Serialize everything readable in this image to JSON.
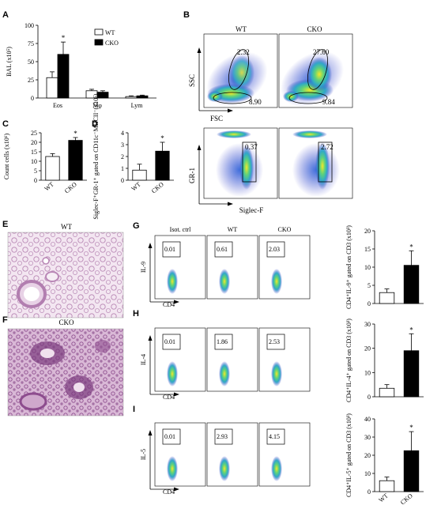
{
  "panel_letters": [
    "A",
    "B",
    "C",
    "D",
    "E",
    "F",
    "G",
    "H",
    "I"
  ],
  "colors": {
    "wt_fill": "#ffffff",
    "cko_fill": "#000000",
    "tissue": "#c9a4c6",
    "tissue_dark": "#7b3f7e",
    "flow_hot": "#e8e020",
    "flow_mid": "#2fa8a0",
    "flow_cold": "#3a3fc8"
  },
  "legend": {
    "wt": "WT",
    "cko": "CKO"
  },
  "panel_b": {
    "col_wt": "WT",
    "col_cko": "CKO",
    "top_ylabel": "SSC",
    "top_xlabel": "FSC",
    "top_values": {
      "wt_upper": "2.32",
      "wt_lower": "8.90",
      "cko_upper": "27.60",
      "cko_lower": "9.84"
    },
    "bot_ylabel": "GR-1",
    "bot_xlabel": "Siglec-F",
    "bot_values": {
      "wt": "0.37",
      "cko": "2.72"
    }
  },
  "panel_e": {
    "title": "WT"
  },
  "panel_f": {
    "title": "CKO"
  },
  "flow_rows": {
    "col_labels": [
      "Isot. ctrl",
      "WT",
      "CKO"
    ],
    "xlabel": "CD4",
    "G": {
      "ylabel": "IL-9",
      "values": [
        "0.01",
        "0.61",
        "2.03"
      ]
    },
    "H": {
      "ylabel": "IL-4",
      "values": [
        "0.01",
        "1.86",
        "2.53"
      ]
    },
    "I": {
      "ylabel": "IL-5",
      "values": [
        "0.01",
        "2.93",
        "4.15"
      ]
    }
  },
  "chart_data": [
    {
      "panel": "A",
      "type": "bar",
      "categories": [
        "Eos",
        "Mφ",
        "Lym"
      ],
      "series": [
        {
          "name": "WT",
          "values": [
            28,
            10,
            2
          ],
          "errors": [
            8,
            2,
            1
          ]
        },
        {
          "name": "CKO",
          "values": [
            60,
            8,
            3
          ],
          "errors": [
            17,
            2,
            1
          ]
        }
      ],
      "ylabel": "BAL (x10⁵)",
      "ylim": [
        0,
        100
      ],
      "yticks": [
        0,
        25,
        50,
        75,
        100
      ],
      "significance": [
        "*",
        "",
        ""
      ]
    },
    {
      "panel": "C",
      "type": "bar",
      "categories": [
        "WT",
        "CKO"
      ],
      "values": [
        12.5,
        21
      ],
      "errors": [
        1.5,
        1.5
      ],
      "ylabel": "Count cells (x10⁶)",
      "ylim": [
        0,
        25
      ],
      "yticks": [
        0,
        5,
        10,
        15,
        20,
        25
      ],
      "significance": [
        "",
        "*"
      ]
    },
    {
      "panel": "D",
      "type": "bar",
      "categories": [
        "WT",
        "CKO"
      ],
      "values": [
        0.85,
        2.45
      ],
      "errors": [
        0.5,
        0.75
      ],
      "ylabel": "Siglec-F⁺GR-1⁺ gated on CD11c⁻MHCII⁻(x10⁵)",
      "ylim": [
        0,
        4
      ],
      "yticks": [
        0,
        1,
        2,
        3,
        4
      ],
      "significance": [
        "",
        "*"
      ]
    },
    {
      "panel": "G",
      "type": "bar",
      "categories": [
        "WT",
        "CKO"
      ],
      "values": [
        3,
        10.5
      ],
      "errors": [
        1,
        4
      ],
      "ylabel": "CD4⁺IL-9⁺ gated on CD3 (x10³)",
      "ylim": [
        0,
        20
      ],
      "yticks": [
        0,
        5,
        10,
        15,
        20
      ],
      "significance": [
        "",
        "*"
      ]
    },
    {
      "panel": "H",
      "type": "bar",
      "categories": [
        "WT",
        "CKO"
      ],
      "values": [
        3.5,
        19
      ],
      "errors": [
        1.5,
        7
      ],
      "ylabel": "CD4⁺IL-4⁺ gated on CD3 (x10³)",
      "ylim": [
        0,
        30
      ],
      "yticks": [
        0,
        10,
        20,
        30
      ],
      "significance": [
        "",
        "*"
      ]
    },
    {
      "panel": "I",
      "type": "bar",
      "categories": [
        "WT",
        "CKO"
      ],
      "values": [
        6,
        22.5
      ],
      "errors": [
        2,
        10.5
      ],
      "ylabel": "CD4⁺IL-5⁺ gated on CD3 (x10³)",
      "ylim": [
        0,
        40
      ],
      "yticks": [
        0,
        10,
        20,
        30,
        40
      ],
      "significance": [
        "",
        "*"
      ],
      "xticklabels_rotated": true
    }
  ]
}
